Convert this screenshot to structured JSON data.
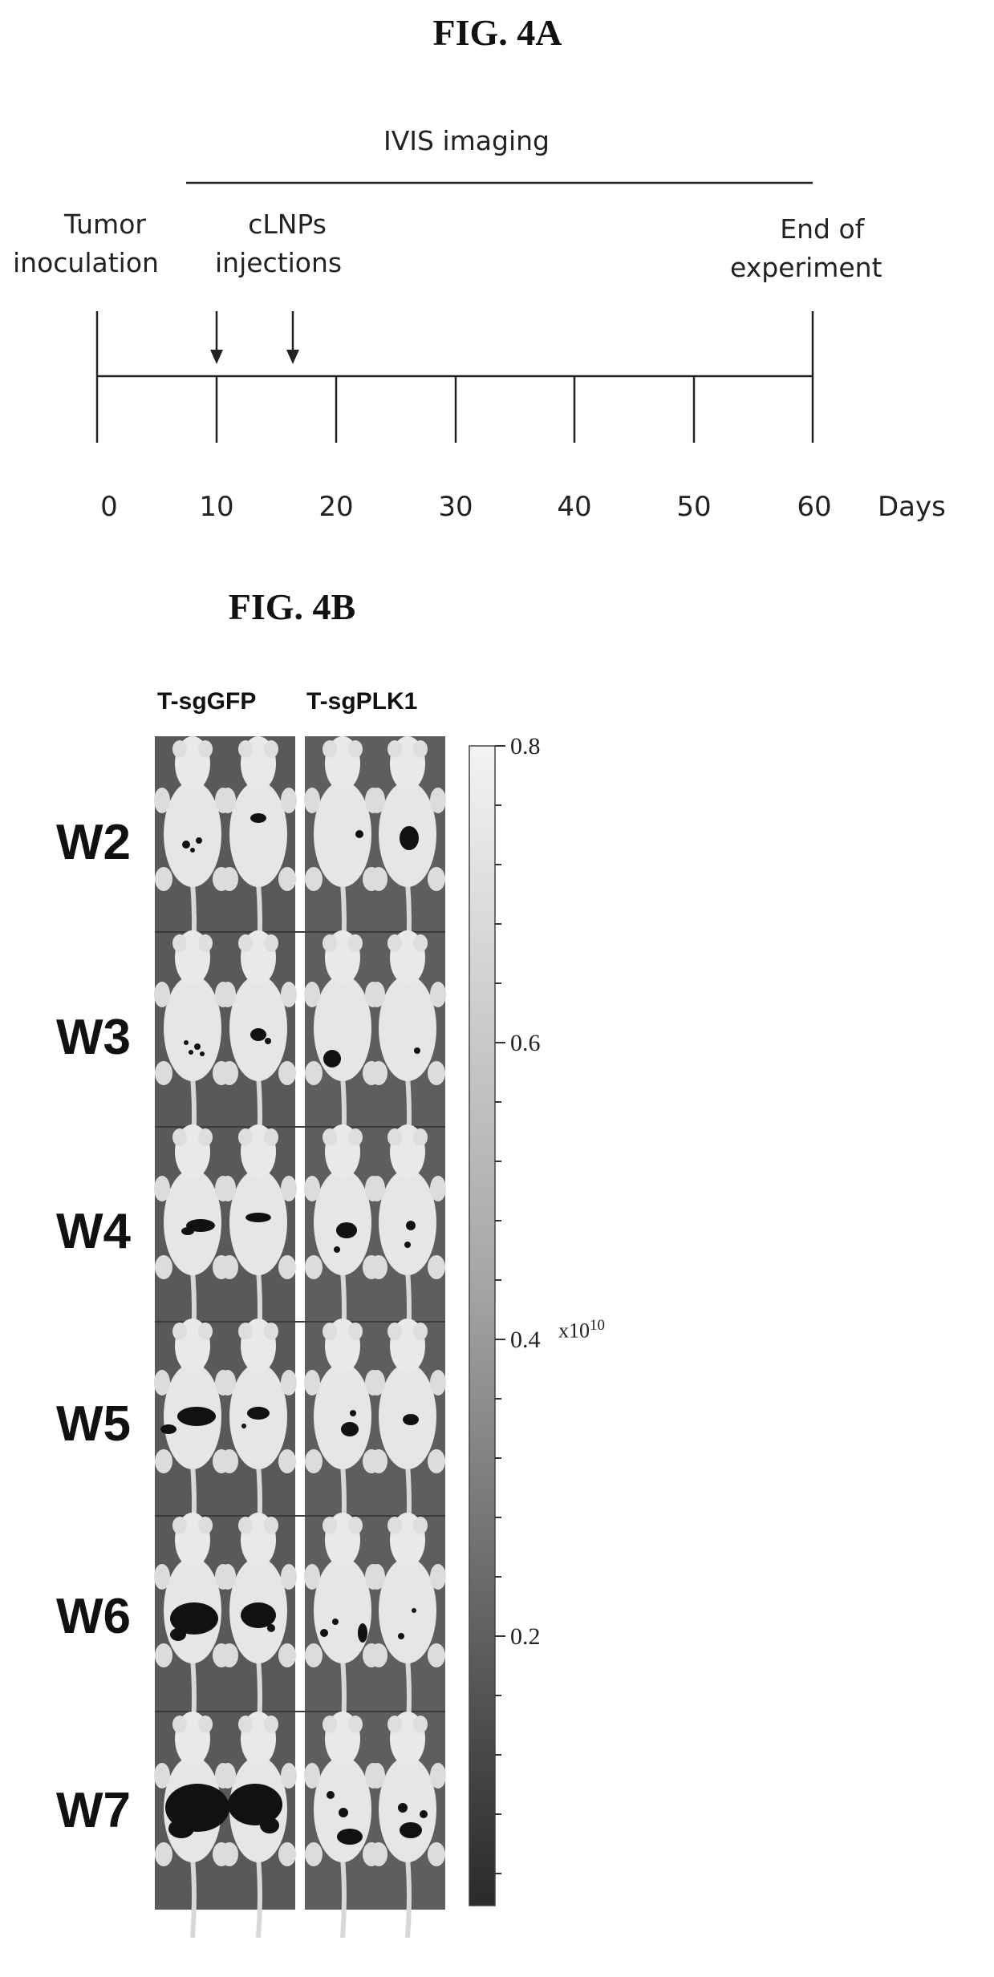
{
  "fig_4a": {
    "title": "FIG. 4A",
    "imaging_label": "IVIS imaging",
    "events": [
      {
        "label_lines": [
          "Tumor",
          "inoculation"
        ],
        "day": 0
      },
      {
        "label_lines": [
          "cLNPs",
          "injections"
        ],
        "injection_days": [
          10,
          16
        ]
      },
      {
        "label_lines": [
          "End of",
          "experiment"
        ],
        "day": 60
      }
    ],
    "ticks": [
      0,
      10,
      20,
      30,
      40,
      50,
      60
    ],
    "tick_labels": [
      "0",
      "10",
      "20",
      "30",
      "40",
      "50",
      "60"
    ],
    "axis_unit": "Days"
  },
  "fig_4b": {
    "title": "FIG. 4B",
    "columns": [
      "T-sgGFP",
      "T-sgPLK1"
    ],
    "rows": [
      "W2",
      "W3",
      "W4",
      "W5",
      "W6",
      "W7"
    ],
    "colorbar": {
      "tick_labels": [
        "0.8",
        "0.6",
        "0.4",
        "0.2"
      ],
      "unit_base": "x10",
      "unit_exp": "10"
    }
  }
}
